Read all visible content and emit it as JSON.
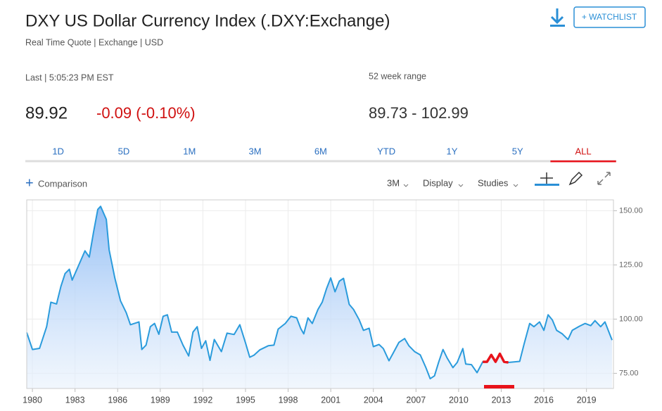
{
  "header": {
    "title": "DXY US Dollar Currency Index (.DXY:Exchange)",
    "subtitle": "Real Time Quote | Exchange | USD",
    "watchlist": "+ WATCHLIST"
  },
  "quote": {
    "last": "Last | 5:05:23 PM EST",
    "price": "89.92",
    "change": "-0.09 (-0.10%)",
    "range_label": "52 week range",
    "range": "89.73 - 102.99"
  },
  "tabs": [
    {
      "label": "1D"
    },
    {
      "label": "5D"
    },
    {
      "label": "1M"
    },
    {
      "label": "3M"
    },
    {
      "label": "6M"
    },
    {
      "label": "YTD"
    },
    {
      "label": "1Y"
    },
    {
      "label": "5Y"
    },
    {
      "label": "ALL",
      "active": true
    }
  ],
  "toolbar": {
    "comparison": "Comparison",
    "interval": "3M",
    "display": "Display",
    "studies": "Studies"
  },
  "chart_data": {
    "type": "line",
    "x": [
      1979.6,
      1980.0,
      1980.5,
      1981.0,
      1981.3,
      1981.7,
      1982.0,
      1982.3,
      1982.6,
      1982.8,
      1983.2,
      1983.7,
      1984.0,
      1984.3,
      1984.6,
      1984.8,
      1985.2,
      1985.4,
      1985.8,
      1986.2,
      1986.6,
      1986.9,
      1987.5,
      1987.7,
      1988.0,
      1988.3,
      1988.6,
      1988.9,
      1989.2,
      1989.5,
      1989.8,
      1990.2,
      1990.6,
      1991.0,
      1991.3,
      1991.6,
      1991.9,
      1992.2,
      1992.5,
      1992.8,
      1993.3,
      1993.7,
      1994.2,
      1994.6,
      1995.0,
      1995.3,
      1995.6,
      1996.0,
      1996.6,
      1997.0,
      1997.3,
      1997.8,
      1998.2,
      1998.6,
      1998.9,
      1999.1,
      1999.4,
      1999.7,
      2000.1,
      2000.4,
      2000.7,
      2001.0,
      2001.3,
      2001.6,
      2001.9,
      2002.3,
      2002.6,
      2003.0,
      2003.3,
      2003.7,
      2004.0,
      2004.4,
      2004.7,
      2005.1,
      2005.4,
      2005.8,
      2006.2,
      2006.5,
      2006.9,
      2007.3,
      2007.7,
      2008.0,
      2008.3,
      2008.6,
      2008.9,
      2009.2,
      2009.6,
      2009.9,
      2010.3,
      2010.5,
      2010.9,
      2011.3,
      2011.7,
      2012.0,
      2012.3,
      2012.6,
      2012.9,
      2013.2,
      2013.5,
      2014.3,
      2014.6,
      2015.0,
      2015.3,
      2015.7,
      2016.0,
      2016.3,
      2016.6,
      2016.9,
      2017.3,
      2017.7,
      2018.0,
      2018.5,
      2018.9,
      2019.3,
      2019.6,
      2020.0,
      2020.3,
      2020.8
    ],
    "series": [
      {
        "color": "#2a9bdc",
        "values": [
          93.8,
          86,
          86.5,
          96.5,
          107.8,
          107,
          115,
          121,
          123,
          118,
          124,
          131.5,
          128.6,
          140,
          150.6,
          152,
          146,
          132,
          119,
          108.4,
          103,
          97.4,
          98.7,
          86,
          88,
          96.5,
          98,
          93,
          101.3,
          102,
          94,
          94,
          88,
          83,
          94,
          96.5,
          86.5,
          90,
          81,
          90.6,
          85,
          93.5,
          92.9,
          97.4,
          89,
          82.4,
          83.4,
          85.8,
          87.7,
          88,
          95.4,
          98,
          101.3,
          100.6,
          95.5,
          93.2,
          100.6,
          98,
          104.5,
          107.8,
          114,
          119,
          112.6,
          117.5,
          118.8,
          106.8,
          104.5,
          99.7,
          94.8,
          95.8,
          87.3,
          88.3,
          86.4,
          80.8,
          84.4,
          89.3,
          91,
          87.7,
          85,
          83.5,
          77.6,
          72.5,
          73.8,
          80.2,
          86,
          82,
          77.6,
          80,
          86.4,
          79.3,
          79,
          75.3,
          80.3,
          80.3,
          83.5,
          80.3,
          84,
          80.3,
          80,
          80.5,
          88.3,
          98,
          96.5,
          98.7,
          94.8,
          102,
          99.6,
          94.8,
          93.2,
          90.6,
          94.8,
          96.7,
          98,
          97,
          99.3,
          96.5,
          98.7,
          90.3
        ]
      },
      {
        "color": "#e8131b",
        "values": [
          null,
          null,
          null,
          null,
          null,
          null,
          null,
          null,
          null,
          null,
          null,
          null,
          null,
          null,
          null,
          null,
          null,
          null,
          null,
          null,
          null,
          null,
          null,
          null,
          null,
          null,
          null,
          null,
          null,
          null,
          null,
          null,
          null,
          null,
          null,
          null,
          null,
          null,
          null,
          null,
          null,
          null,
          null,
          null,
          null,
          null,
          null,
          null,
          null,
          null,
          null,
          null,
          null,
          null,
          null,
          null,
          null,
          null,
          null,
          null,
          null,
          null,
          null,
          null,
          null,
          null,
          null,
          null,
          null,
          null,
          null,
          null,
          null,
          null,
          null,
          null,
          null,
          null,
          null,
          null,
          null,
          null,
          null,
          null,
          null,
          null,
          null,
          null,
          null,
          null,
          null,
          null,
          80.3,
          80.3,
          83.5,
          80.3,
          84,
          80.3,
          80,
          null,
          null,
          null,
          null,
          null,
          null,
          null,
          null,
          null,
          null,
          null,
          null,
          null,
          null,
          null,
          null,
          null,
          null,
          null
        ]
      }
    ],
    "xlim": [
      1979.6,
      2020.9
    ],
    "ylim": [
      68,
      155
    ],
    "xticks": [
      1980,
      1983,
      1986,
      1989,
      1992,
      1995,
      1998,
      2001,
      2004,
      2007,
      2010,
      2013,
      2016,
      2019
    ],
    "yticks": [
      {
        "value": 75,
        "label": "75.00"
      },
      {
        "value": 100,
        "label": "100.00"
      },
      {
        "value": 125,
        "label": "125.00"
      },
      {
        "value": 150,
        "label": "150.00"
      }
    ],
    "grid": true
  }
}
